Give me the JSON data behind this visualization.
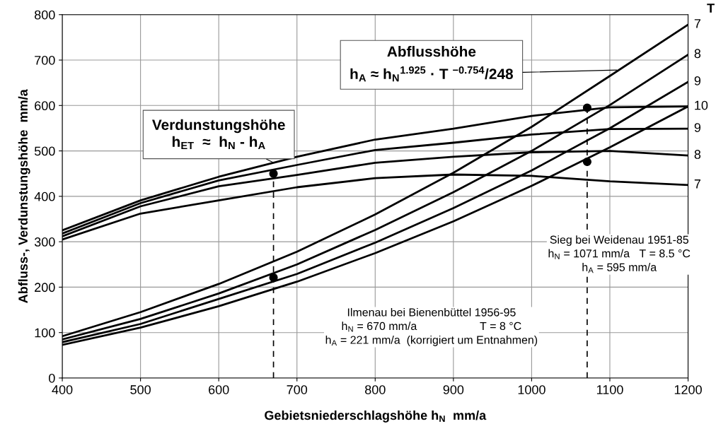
{
  "chart_data": {
    "type": "line",
    "xlabel": "Gebietsniederschlagshöhe h$_{N}$  mm/a",
    "ylabel": "Abfluss-, Verdunstungshöhe  mm/a",
    "xlim": [
      400,
      1200
    ],
    "xticks": [
      400,
      500,
      600,
      700,
      800,
      900,
      1000,
      1100,
      1200
    ],
    "ylim": [
      0,
      800
    ],
    "yticks": [
      0,
      100,
      200,
      300,
      400,
      500,
      600,
      700,
      800
    ],
    "grid": true,
    "legend": false,
    "marker": "none",
    "line_style": "solid",
    "series": [
      {
        "name": "7",
        "color": "#000000",
        "x": [
          400,
          500,
          600,
          700,
          800,
          900,
          1000,
          1100,
          1200
        ],
        "values": [
          92,
          145,
          207,
          278,
          360,
          452,
          553,
          665,
          778
        ]
      },
      {
        "name": "8",
        "color": "#000000",
        "x": [
          400,
          500,
          600,
          700,
          800,
          900,
          1000,
          1100,
          1200
        ],
        "values": [
          85,
          130,
          186,
          250,
          326,
          409,
          500,
          601,
          712
        ]
      },
      {
        "name": "9",
        "color": "#000000",
        "x": [
          400,
          500,
          600,
          700,
          800,
          900,
          1000,
          1100,
          1200
        ],
        "values": [
          79,
          119,
          174,
          229,
          298,
          374,
          457,
          550,
          652
        ]
      },
      {
        "color": "#000000",
        "x": [
          400,
          500,
          600,
          700,
          800,
          900,
          1000,
          1100,
          1200
        ],
        "values": [
          73,
          111,
          158,
          212,
          275,
          345,
          423,
          508,
          598
        ]
      },
      {
        "name": "10",
        "color": "#000000",
        "x": [
          400,
          500,
          600,
          700,
          800,
          900,
          1000,
          1100,
          1200
        ],
        "values": [
          325,
          391,
          443,
          487,
          525,
          549,
          577,
          596,
          598
        ]
      },
      {
        "name": "9",
        "color": "#000000",
        "x": [
          400,
          500,
          600,
          700,
          800,
          900,
          1000,
          1100,
          1200
        ],
        "values": [
          318,
          385,
          435,
          469,
          502,
          518,
          536,
          548,
          549
        ]
      },
      {
        "name": "8",
        "color": "#000000",
        "x": [
          400,
          500,
          600,
          700,
          800,
          900,
          1000,
          1100,
          1200
        ],
        "values": [
          312,
          378,
          422,
          447,
          474,
          487,
          497,
          500,
          490
        ]
      },
      {
        "name": "7",
        "color": "#000000",
        "x": [
          400,
          500,
          600,
          700,
          800,
          900,
          1000,
          1100,
          1200
        ],
        "values": [
          305,
          362,
          391,
          420,
          440,
          448,
          445,
          433,
          425
        ]
      },
      {
        "type": "line",
        "line_style": "dashed",
        "color": "#000000",
        "x": [
          670,
          670
        ],
        "values": [
          0,
          450
        ]
      },
      {
        "type": "line",
        "line_style": "dashed",
        "color": "#000000",
        "x": [
          1071,
          1071
        ],
        "values": [
          0,
          595
        ]
      },
      {
        "type": "scatter",
        "marker": "circle",
        "color": "#000000",
        "x": [
          670,
          670,
          1071,
          1071
        ],
        "values": [
          450,
          221,
          595,
          476
        ]
      }
    ],
    "annotations": [
      {
        "text": "Verdunstungshöhe\nh$_{ET}$  ≈  h$_{N}$ - h$_{A}$",
        "x": 670,
        "y": 474
      },
      "Abflusshöhe",
      {
        "text": "h$_{A}$ ≈ h$_{N}$$^{1.925}$ · T $^{−0.754}$/248",
        "x": 1109,
        "y": 678
      },
      "T",
      "Ilmenau bei Bienenbüttel 1956-95\nh$_{N}$ = 670 mm/a                    T = 8 °C\nh$_{A}$ = 221 mm/a  (korrigiert um Entnahmen)",
      "Sieg bei Weidenau 1951-85\nh$_{N}$ = 1071 mm/a   T = 8.5 °C\nh$_{A}$ = 595 mm/a"
    ]
  }
}
